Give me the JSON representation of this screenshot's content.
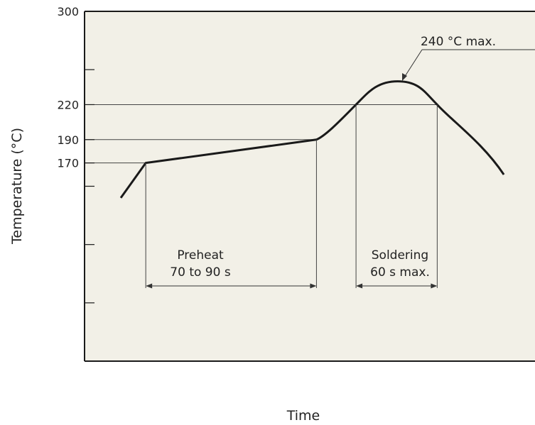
{
  "chart_data": {
    "type": "line",
    "xlabel": "Time",
    "ylabel": "Temperature (°C)",
    "ylim": [
      0,
      300
    ],
    "yticks": [
      300,
      220,
      190,
      170
    ],
    "minor_yticks": [
      250,
      150,
      100,
      50
    ],
    "grid": false,
    "colors": {
      "plot_bg": "#f2f0e7",
      "curve": "#1a1a1a",
      "lines": "#333333"
    },
    "series": [
      {
        "values": [
          {
            "x": 0,
            "y": 140
          },
          {
            "x": 12,
            "y": 170
          },
          {
            "x": 94,
            "y": 190
          },
          {
            "x": 113,
            "y": 220
          },
          {
            "x": 133,
            "y": 240
          },
          {
            "x": 152,
            "y": 220
          },
          {
            "x": 184,
            "y": 160
          }
        ]
      }
    ],
    "annotations": {
      "peak": "240 °C max.",
      "preheat_line1": "Preheat",
      "preheat_line2": "70 to 90 s",
      "soldering_line1": "Soldering",
      "soldering_line2": "60 s max."
    }
  }
}
